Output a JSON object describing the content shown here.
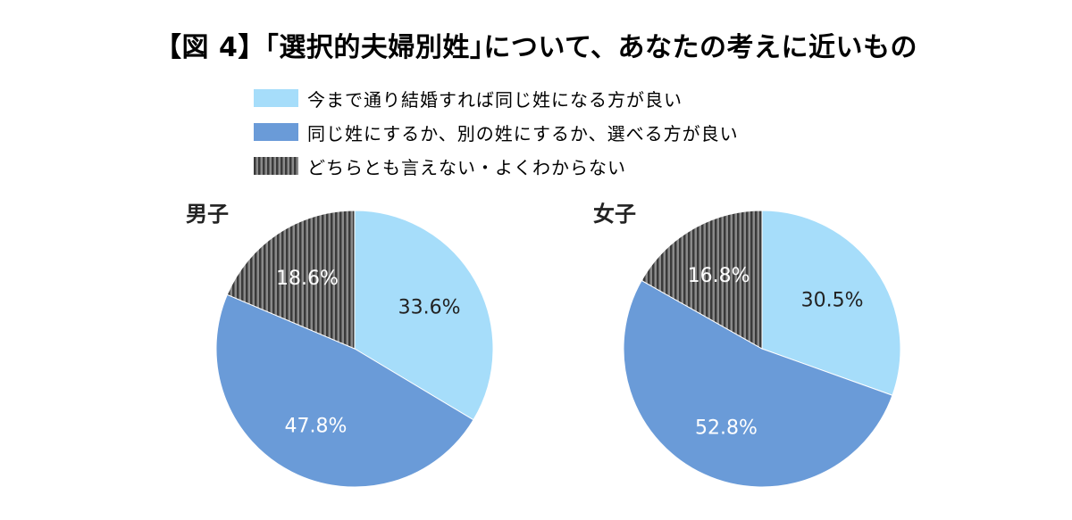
{
  "title": "【図 4】｢選択的夫婦別姓｣について、あなたの考えに近いもの",
  "legend": [
    {
      "label": "今まで通り結婚すれば同じ姓になる方が良い",
      "color": "#a6ddfa",
      "pattern": "solid"
    },
    {
      "label": "同じ姓にするか、別の姓にするか、選べる方が良い",
      "color": "#6a9bd8",
      "pattern": "solid"
    },
    {
      "label": "どちらとも言えない・よくわからない",
      "color": "#555555",
      "pattern": "vertical-stripes"
    }
  ],
  "chart_data": [
    {
      "type": "pie",
      "title": "男子",
      "categories": [
        "今まで通り結婚すれば同じ姓になる方が良い",
        "同じ姓にするか、別の姓にするか、選べる方が良い",
        "どちらとも言えない・よくわからない"
      ],
      "values": [
        33.6,
        47.8,
        18.6
      ],
      "data_labels": [
        "33.6%",
        "47.8%",
        "18.6%"
      ],
      "start_angle": "12 o'clock",
      "direction": "clockwise"
    },
    {
      "type": "pie",
      "title": "女子",
      "categories": [
        "今まで通り結婚すれば同じ姓になる方が良い",
        "同じ姓にするか、別の姓にするか、選べる方が良い",
        "どちらとも言えない・よくわからない"
      ],
      "values": [
        30.5,
        52.8,
        16.8
      ],
      "data_labels": [
        "30.5%",
        "52.8%",
        "16.8%"
      ],
      "start_angle": "12 o'clock",
      "direction": "clockwise"
    }
  ]
}
